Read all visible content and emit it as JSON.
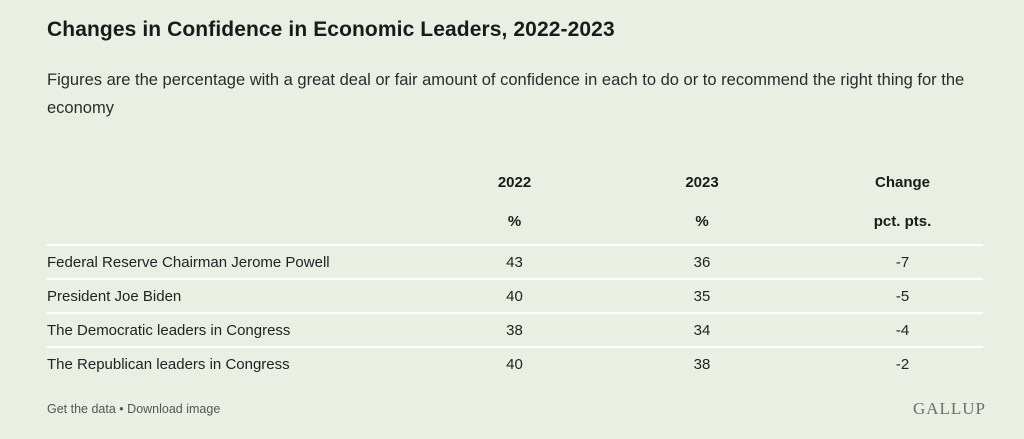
{
  "chart_data": {
    "type": "table",
    "title": "Changes in Confidence in Economic Leaders, 2022-2023",
    "subtitle": "Figures are the percentage with a great deal or fair amount of confidence in each to do or to recommend the right thing for the economy",
    "columns": [
      {
        "header": "2022",
        "unit": "%"
      },
      {
        "header": "2023",
        "unit": "%"
      },
      {
        "header": "Change",
        "unit": "pct. pts."
      }
    ],
    "rows": [
      {
        "label": "Federal Reserve Chairman Jerome Powell",
        "values": [
          "43",
          "36",
          "-7"
        ]
      },
      {
        "label": "President Joe Biden",
        "values": [
          "40",
          "35",
          "-5"
        ]
      },
      {
        "label": "The Democratic leaders in Congress",
        "values": [
          "38",
          "34",
          "-4"
        ]
      },
      {
        "label": "The Republican leaders in Congress",
        "values": [
          "40",
          "38",
          "-2"
        ]
      }
    ]
  },
  "footer": {
    "get_data": "Get the data",
    "separator": "•",
    "download": "Download image"
  },
  "brand": "GALLUP",
  "colors": {
    "background": "#e9f0e3",
    "row_divider": "#ffffff"
  }
}
